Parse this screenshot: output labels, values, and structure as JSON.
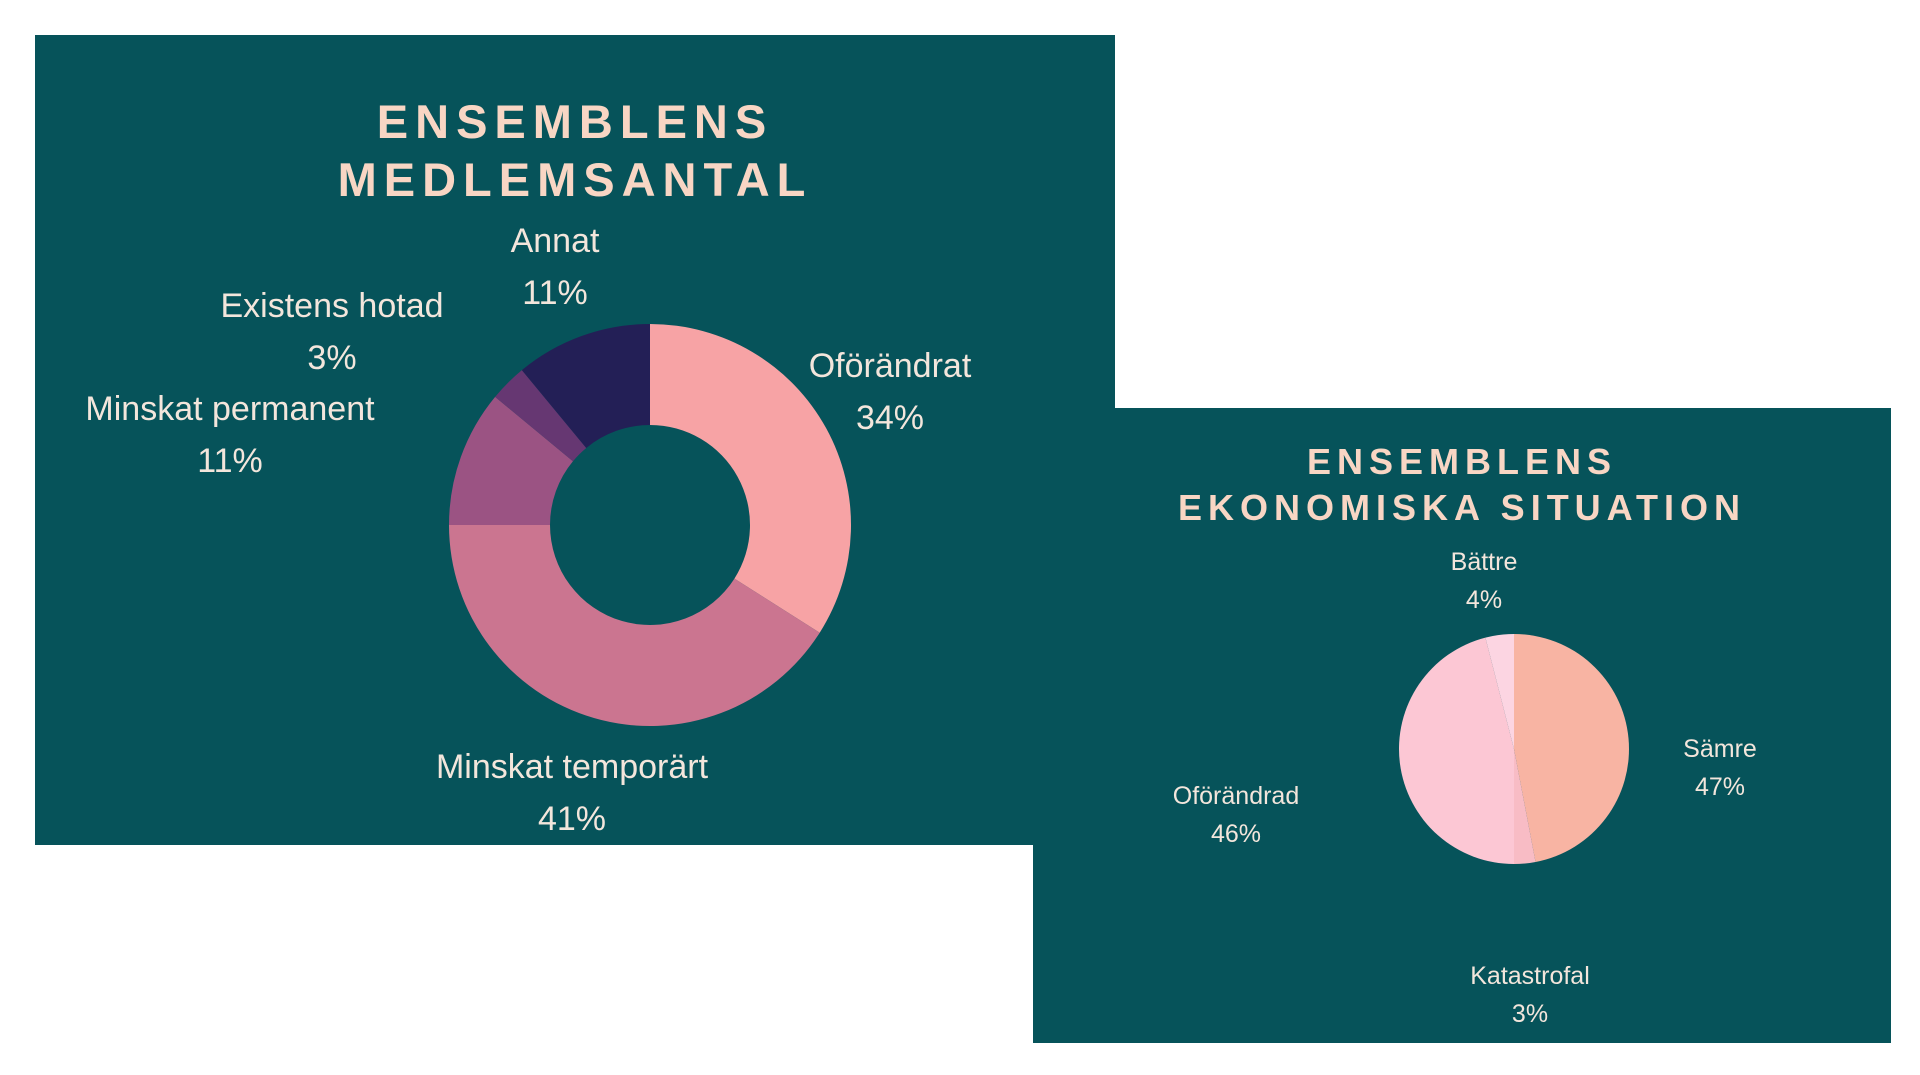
{
  "colors": {
    "background": "#06535a",
    "title": "#f8d6c4",
    "label": "#f3e6dc"
  },
  "chart_data": [
    {
      "type": "donut",
      "title": [
        "Ensemblens",
        "medlemsantal"
      ],
      "unit": "%",
      "slices": [
        {
          "label": "Oförändrat",
          "value": 34,
          "display": "34%",
          "color": "#f7a3a5"
        },
        {
          "label": "Minskat temporärt",
          "value": 41,
          "display": "41%",
          "color": "#cb7590"
        },
        {
          "label": "Minskat permanent",
          "value": 11,
          "display": "11%",
          "color": "#9b5383"
        },
        {
          "label": "Existens hotad",
          "value": 3,
          "display": "3%",
          "color": "#663772"
        },
        {
          "label": "Annat",
          "value": 11,
          "display": "11%",
          "color": "#231f56"
        }
      ]
    },
    {
      "type": "pie",
      "title": [
        "Ensemblens",
        "ekonomiska situation"
      ],
      "unit": "%",
      "slices": [
        {
          "label": "Sämre",
          "value": 47,
          "display": "47%",
          "color": "#f8b4a3"
        },
        {
          "label": "Katastrofal",
          "value": 3,
          "display": "3%",
          "color": "#f8bcc5"
        },
        {
          "label": "Oförändrad",
          "value": 46,
          "display": "46%",
          "color": "#fcc7d4"
        },
        {
          "label": "Bättre",
          "value": 4,
          "display": "4%",
          "color": "#fcd5e2"
        }
      ]
    }
  ]
}
